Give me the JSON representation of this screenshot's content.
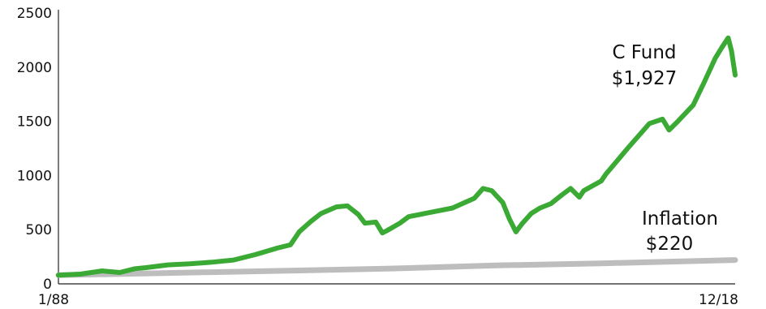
{
  "chart_data": {
    "type": "line",
    "title": "",
    "xlabel": "",
    "ylabel": "",
    "ylim": [
      0,
      2500
    ],
    "yticks": [
      0,
      500,
      1000,
      1500,
      2000,
      2500
    ],
    "ytick_labels": [
      "0",
      "500",
      "1000",
      "1500",
      "2000",
      "2500"
    ],
    "xlim": [
      1988.0,
      2018.917
    ],
    "xtick_labels": [
      {
        "x": 1988.0,
        "label": "1/88"
      },
      {
        "x": 2018.917,
        "label": "12/18"
      }
    ],
    "grid": false,
    "colors": {
      "c_fund": "#3aaa35",
      "inflation": "#bdbdbd"
    },
    "series": [
      {
        "name": "C Fund",
        "x": [
          1988.0,
          1989.0,
          1990.0,
          1990.8,
          1991.5,
          1992.0,
          1993.0,
          1994.0,
          1995.0,
          1996.0,
          1997.0,
          1998.0,
          1998.6,
          1999.0,
          1999.5,
          2000.0,
          2000.7,
          2001.2,
          2001.7,
          2002.0,
          2002.5,
          2002.8,
          2003.0,
          2003.6,
          2004.0,
          2005.0,
          2006.0,
          2007.0,
          2007.4,
          2007.8,
          2008.3,
          2008.6,
          2008.9,
          2009.2,
          2009.6,
          2010.0,
          2010.5,
          2011.0,
          2011.4,
          2011.8,
          2012.0,
          2012.8,
          2013.0,
          2014.0,
          2015.0,
          2015.6,
          2015.9,
          2016.3,
          2017.0,
          2017.5,
          2018.0,
          2018.3,
          2018.6,
          2018.75,
          2018.917
        ],
        "values": [
          80,
          90,
          120,
          105,
          140,
          150,
          175,
          185,
          200,
          220,
          270,
          330,
          360,
          480,
          570,
          650,
          710,
          720,
          640,
          560,
          570,
          470,
          490,
          560,
          620,
          660,
          700,
          790,
          880,
          860,
          750,
          600,
          480,
          560,
          650,
          700,
          740,
          820,
          880,
          800,
          860,
          950,
          1010,
          1250,
          1480,
          1520,
          1420,
          1500,
          1650,
          1860,
          2080,
          2180,
          2270,
          2150,
          1927
        ],
        "end_label": [
          "C Fund",
          "$1,927"
        ]
      },
      {
        "name": "Inflation",
        "x": [
          1988.0,
          1993.0,
          1998.0,
          2003.0,
          2008.0,
          2013.0,
          2018.917
        ],
        "values": [
          80,
          100,
          120,
          140,
          170,
          190,
          220
        ],
        "end_label": [
          "Inflation",
          "$220"
        ]
      }
    ]
  }
}
